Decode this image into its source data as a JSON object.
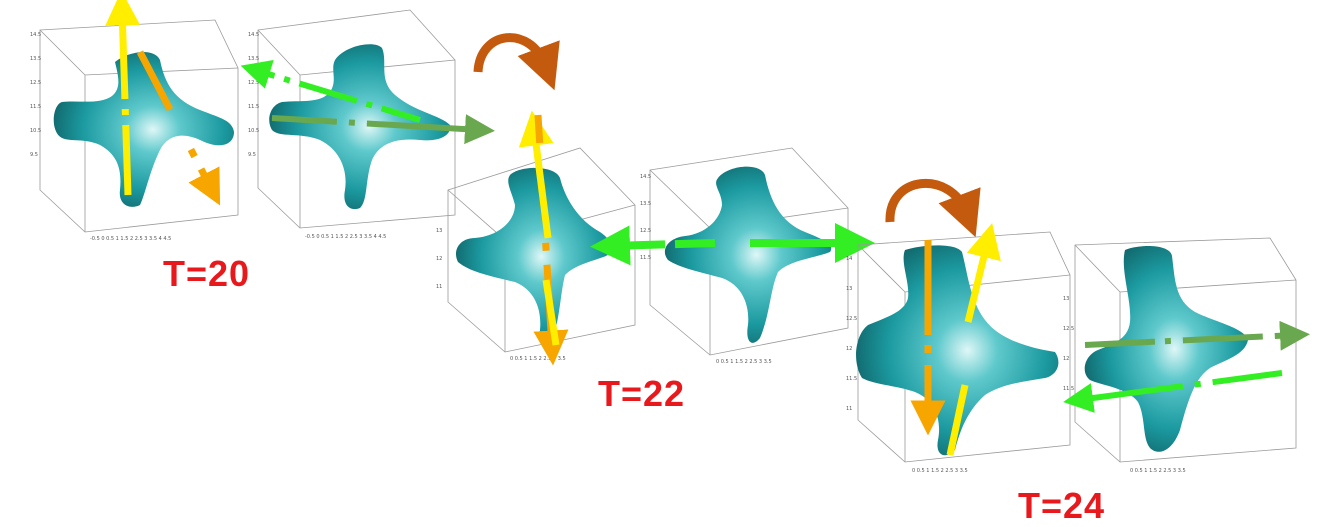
{
  "time_labels": [
    "T=20",
    "T=22",
    "T=24"
  ],
  "colors": {
    "surface": "#1b9aa0",
    "surface_dark": "#0f5f63",
    "highlight": "#dff7f7",
    "yellow_arrow": "#ffee00",
    "orange_arrow": "#f7a600",
    "green_arrow": "#33ee22",
    "olive_arrow": "#6aa84f",
    "rotation_arrow": "#c45a0e",
    "label_red": "#e8191d",
    "box_line": "#9a9a9a"
  },
  "panels": [
    {
      "time": "T=20",
      "view": "a",
      "arrows": [
        "yellow-up",
        "orange-down-right"
      ]
    },
    {
      "time": "T=20",
      "view": "b",
      "arrows": [
        "green-left",
        "olive-right"
      ]
    },
    {
      "time": "T=22",
      "view": "a",
      "arrows": [
        "yellow-up",
        "orange-down"
      ],
      "rotation": true
    },
    {
      "time": "T=22",
      "view": "b",
      "arrows": [
        "green-left",
        "green-right"
      ]
    },
    {
      "time": "T=24",
      "view": "a",
      "arrows": [
        "yellow-up",
        "orange-down"
      ],
      "rotation": true
    },
    {
      "time": "T=24",
      "view": "b",
      "arrows": [
        "olive-right",
        "green-left"
      ]
    }
  ]
}
